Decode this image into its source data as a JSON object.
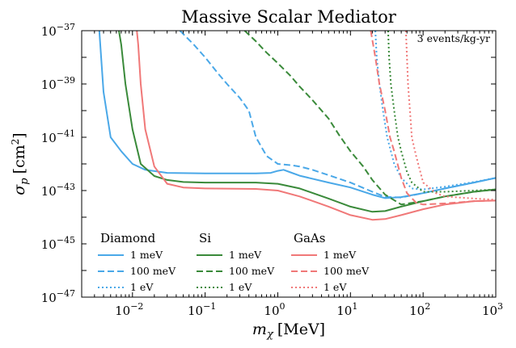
{
  "chart_data": {
    "type": "line",
    "title": "Massive Scalar Mediator",
    "xlabel": "m_χ [MeV]",
    "xlabel_parts": {
      "symbol": "m",
      "sub": "χ",
      "unit": "[MeV]"
    },
    "ylabel": "σ_p [cm²]",
    "ylabel_parts": {
      "symbol": "σ",
      "sub": "p",
      "unit": "[cm",
      "unit_sup": "2",
      "unit_close": "]"
    },
    "x_scale": "log",
    "y_scale": "log",
    "xlim": [
      0.002,
      1000
    ],
    "ylim": [
      1e-47,
      1e-37
    ],
    "x_ticks": [
      {
        "value": 0.01,
        "base": "10",
        "exp": "−2"
      },
      {
        "value": 0.1,
        "base": "10",
        "exp": "−1"
      },
      {
        "value": 1,
        "base": "10",
        "exp": "0"
      },
      {
        "value": 10,
        "base": "10",
        "exp": "1"
      },
      {
        "value": 100,
        "base": "10",
        "exp": "2"
      },
      {
        "value": 1000,
        "base": "10",
        "exp": "3"
      }
    ],
    "y_ticks": [
      {
        "value": 1e-37,
        "base": "10",
        "exp": "−37"
      },
      {
        "value": 1e-39,
        "base": "10",
        "exp": "−39"
      },
      {
        "value": 1e-41,
        "base": "10",
        "exp": "−41"
      },
      {
        "value": 1e-43,
        "base": "10",
        "exp": "−43"
      },
      {
        "value": 1e-45,
        "base": "10",
        "exp": "−45"
      },
      {
        "value": 1e-47,
        "base": "10",
        "exp": "−47"
      }
    ],
    "annotation": "3 events/kg-yr",
    "grid": false,
    "legend_placement": "bottom-left",
    "colors": {
      "Diamond": "#4aa8e8",
      "Si": "#3a8a3a",
      "GaAs": "#f07878"
    },
    "legend": [
      {
        "group": "Diamond",
        "entries": [
          {
            "label": "1 meV",
            "style": "solid"
          },
          {
            "label": "100 meV",
            "style": "dashed"
          },
          {
            "label": "1 eV",
            "style": "dotted"
          }
        ]
      },
      {
        "group": "Si",
        "entries": [
          {
            "label": "1 meV",
            "style": "solid"
          },
          {
            "label": "100 meV",
            "style": "dashed"
          },
          {
            "label": "1 eV",
            "style": "dotted"
          }
        ]
      },
      {
        "group": "GaAs",
        "entries": [
          {
            "label": "1 meV",
            "style": "solid"
          },
          {
            "label": "100 meV",
            "style": "dashed"
          },
          {
            "label": "1 eV",
            "style": "dotted"
          }
        ]
      }
    ],
    "series": [
      {
        "material": "Diamond",
        "threshold": "1 meV",
        "style": "solid",
        "x": [
          0.0035,
          0.004,
          0.005,
          0.007,
          0.01,
          0.015,
          0.03,
          0.1,
          0.5,
          0.8,
          1.0,
          1.2,
          1.5,
          2,
          5,
          10,
          20,
          30,
          50,
          100,
          200,
          500,
          1000
        ],
        "y": [
          1e-37,
          5e-40,
          1e-41,
          3e-42,
          1e-42,
          6e-43,
          4.6e-43,
          4.4e-43,
          4.4e-43,
          4.6e-43,
          5.5e-43,
          6e-43,
          4.8e-43,
          3.6e-43,
          2e-43,
          1.3e-43,
          7e-44,
          5.2e-44,
          5.7e-44,
          8e-44,
          1.2e-43,
          2e-43,
          3e-43
        ]
      },
      {
        "material": "Diamond",
        "threshold": "100 meV",
        "style": "dashed",
        "x": [
          0.045,
          0.07,
          0.1,
          0.15,
          0.2,
          0.3,
          0.4,
          0.5,
          0.7,
          1.0,
          1.5,
          2,
          3,
          5,
          10,
          20,
          30,
          50,
          100,
          200,
          500,
          1000
        ],
        "y": [
          1e-37,
          3e-38,
          1e-38,
          2.5e-39,
          1e-39,
          3e-40,
          1e-40,
          1e-41,
          2e-42,
          1e-42,
          9e-43,
          8e-43,
          6e-43,
          3.8e-43,
          2e-43,
          9e-44,
          5.8e-44,
          5.5e-44,
          8e-44,
          1.2e-43,
          2e-43,
          3e-43
        ]
      },
      {
        "material": "Diamond",
        "threshold": "1 eV",
        "style": "dotted",
        "x": [
          22,
          23,
          25,
          28,
          32,
          40,
          50,
          70,
          100,
          200,
          500,
          1000
        ],
        "y": [
          1e-37,
          1e-38,
          1e-39,
          1e-40,
          1e-41,
          1e-42,
          3e-43,
          1.2e-43,
          1.1e-43,
          1.4e-43,
          2.1e-43,
          3e-43
        ]
      },
      {
        "material": "Si",
        "threshold": "1 meV",
        "style": "solid",
        "x": [
          0.0065,
          0.007,
          0.008,
          0.01,
          0.013,
          0.02,
          0.03,
          0.05,
          0.1,
          0.5,
          1.0,
          2,
          5,
          10,
          20,
          30,
          50,
          100,
          200,
          500,
          1000
        ],
        "y": [
          1e-37,
          3e-38,
          1e-39,
          2e-41,
          1e-42,
          3.5e-43,
          2.5e-43,
          2.1e-43,
          2e-43,
          2e-43,
          1.8e-43,
          1.2e-43,
          5e-44,
          2.5e-44,
          1.6e-44,
          1.7e-44,
          2.5e-44,
          4e-44,
          6e-44,
          9e-44,
          1.1e-43
        ]
      },
      {
        "material": "Si",
        "threshold": "100 meV",
        "style": "dashed",
        "x": [
          0.35,
          0.5,
          0.7,
          1.0,
          1.5,
          2,
          3,
          5,
          7,
          10,
          15,
          20,
          30,
          50,
          100,
          200,
          500,
          1000
        ],
        "y": [
          1e-37,
          4e-38,
          1.5e-38,
          6e-39,
          2e-39,
          8e-40,
          2.5e-40,
          5e-41,
          1.2e-41,
          3e-42,
          8e-43,
          2.5e-43,
          7e-44,
          3e-44,
          4e-44,
          6e-44,
          9e-44,
          1.1e-43
        ]
      },
      {
        "material": "Si",
        "threshold": "1 eV",
        "style": "dotted",
        "x": [
          33,
          34,
          36,
          40,
          45,
          50,
          60,
          70,
          100,
          200,
          500,
          1000
        ],
        "y": [
          1e-37,
          1e-38,
          1e-39,
          1e-40,
          1e-41,
          3e-42,
          5e-43,
          2e-43,
          9e-44,
          9e-44,
          1e-43,
          1.1e-43
        ]
      },
      {
        "material": "GaAs",
        "threshold": "1 meV",
        "style": "solid",
        "x": [
          0.0115,
          0.012,
          0.013,
          0.015,
          0.02,
          0.03,
          0.05,
          0.1,
          0.5,
          1.0,
          2,
          5,
          10,
          20,
          30,
          50,
          100,
          200,
          500,
          1000
        ],
        "y": [
          1e-37,
          3e-38,
          1e-39,
          2e-41,
          8e-43,
          1.8e-43,
          1.3e-43,
          1.2e-43,
          1.15e-43,
          1e-43,
          6e-44,
          2.5e-44,
          1.2e-44,
          8e-45,
          8.5e-45,
          1.2e-44,
          2e-44,
          3e-44,
          4e-44,
          4.2e-44
        ]
      },
      {
        "material": "GaAs",
        "threshold": "100 meV",
        "style": "dashed",
        "x": [
          19,
          22,
          25,
          30,
          35,
          40,
          50,
          60,
          80,
          100,
          200,
          500,
          1000
        ],
        "y": [
          1e-37,
          1e-38,
          1e-39,
          1e-40,
          1e-41,
          3e-42,
          3e-43,
          8e-44,
          3.5e-44,
          3e-44,
          3.3e-44,
          4e-44,
          4.2e-44
        ]
      },
      {
        "material": "GaAs",
        "threshold": "1 eV",
        "style": "dotted",
        "x": [
          58,
          60,
          62,
          66,
          70,
          80,
          90,
          100,
          150,
          200,
          500,
          1000
        ],
        "y": [
          1e-37,
          1e-38,
          1e-39,
          1e-40,
          1e-41,
          2e-42,
          6e-43,
          2e-43,
          8e-44,
          6e-44,
          5e-44,
          4.5e-44
        ]
      }
    ]
  }
}
